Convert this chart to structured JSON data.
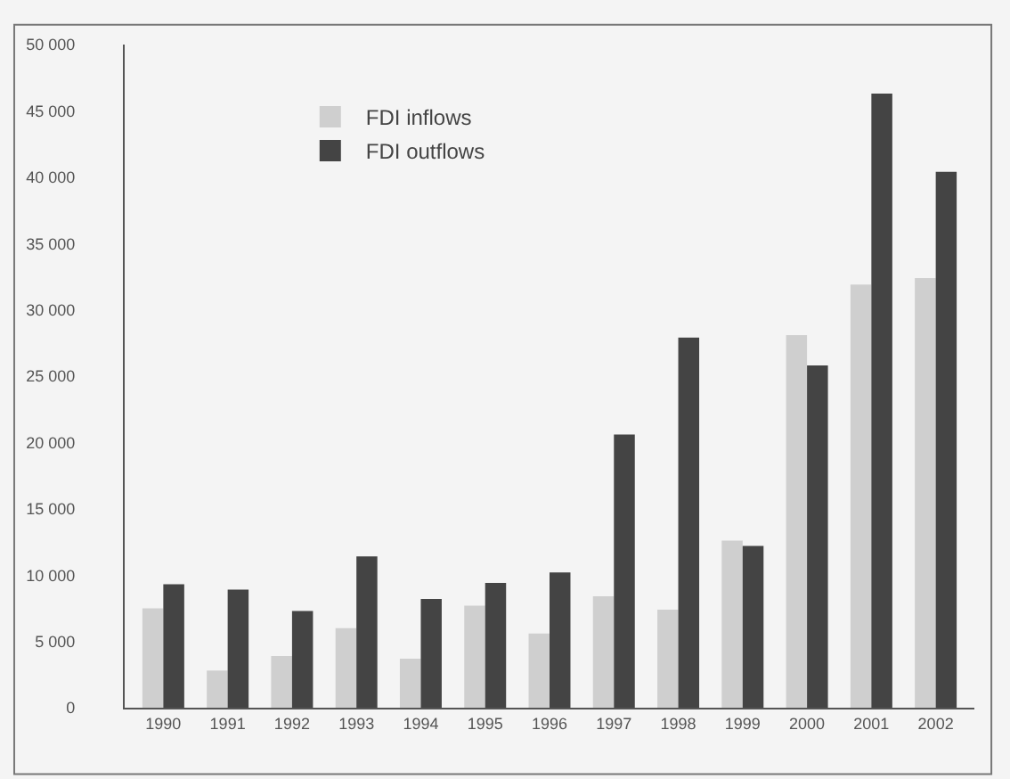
{
  "chart_data": {
    "type": "bar",
    "categories": [
      "1990",
      "1991",
      "1992",
      "1993",
      "1994",
      "1995",
      "1996",
      "1997",
      "1998",
      "1999",
      "2000",
      "2001",
      "2002"
    ],
    "series": [
      {
        "name": "FDI inflows",
        "color": "#cfcfcf",
        "values": [
          7500,
          2800,
          3900,
          6000,
          3700,
          7700,
          5600,
          8400,
          7400,
          12600,
          28100,
          31900,
          32400
        ]
      },
      {
        "name": "FDI outflows",
        "color": "#444444",
        "values": [
          9300,
          8900,
          7300,
          11400,
          8200,
          9400,
          10200,
          20600,
          27900,
          12200,
          25800,
          46300,
          40400
        ]
      }
    ],
    "ylim": [
      0,
      50000
    ],
    "yticks": [
      {
        "value": 0,
        "label": "0"
      },
      {
        "value": 5000,
        "label": "5 000"
      },
      {
        "value": 10000,
        "label": "10 000"
      },
      {
        "value": 15000,
        "label": "15 000"
      },
      {
        "value": 20000,
        "label": "20 000"
      },
      {
        "value": 25000,
        "label": "25 000"
      },
      {
        "value": 30000,
        "label": "30 000"
      },
      {
        "value": 35000,
        "label": "35 000"
      },
      {
        "value": 40000,
        "label": "40 000"
      },
      {
        "value": 45000,
        "label": "45 000"
      },
      {
        "value": 50000,
        "label": "50 000"
      }
    ],
    "grid": false,
    "legend": "top left"
  }
}
